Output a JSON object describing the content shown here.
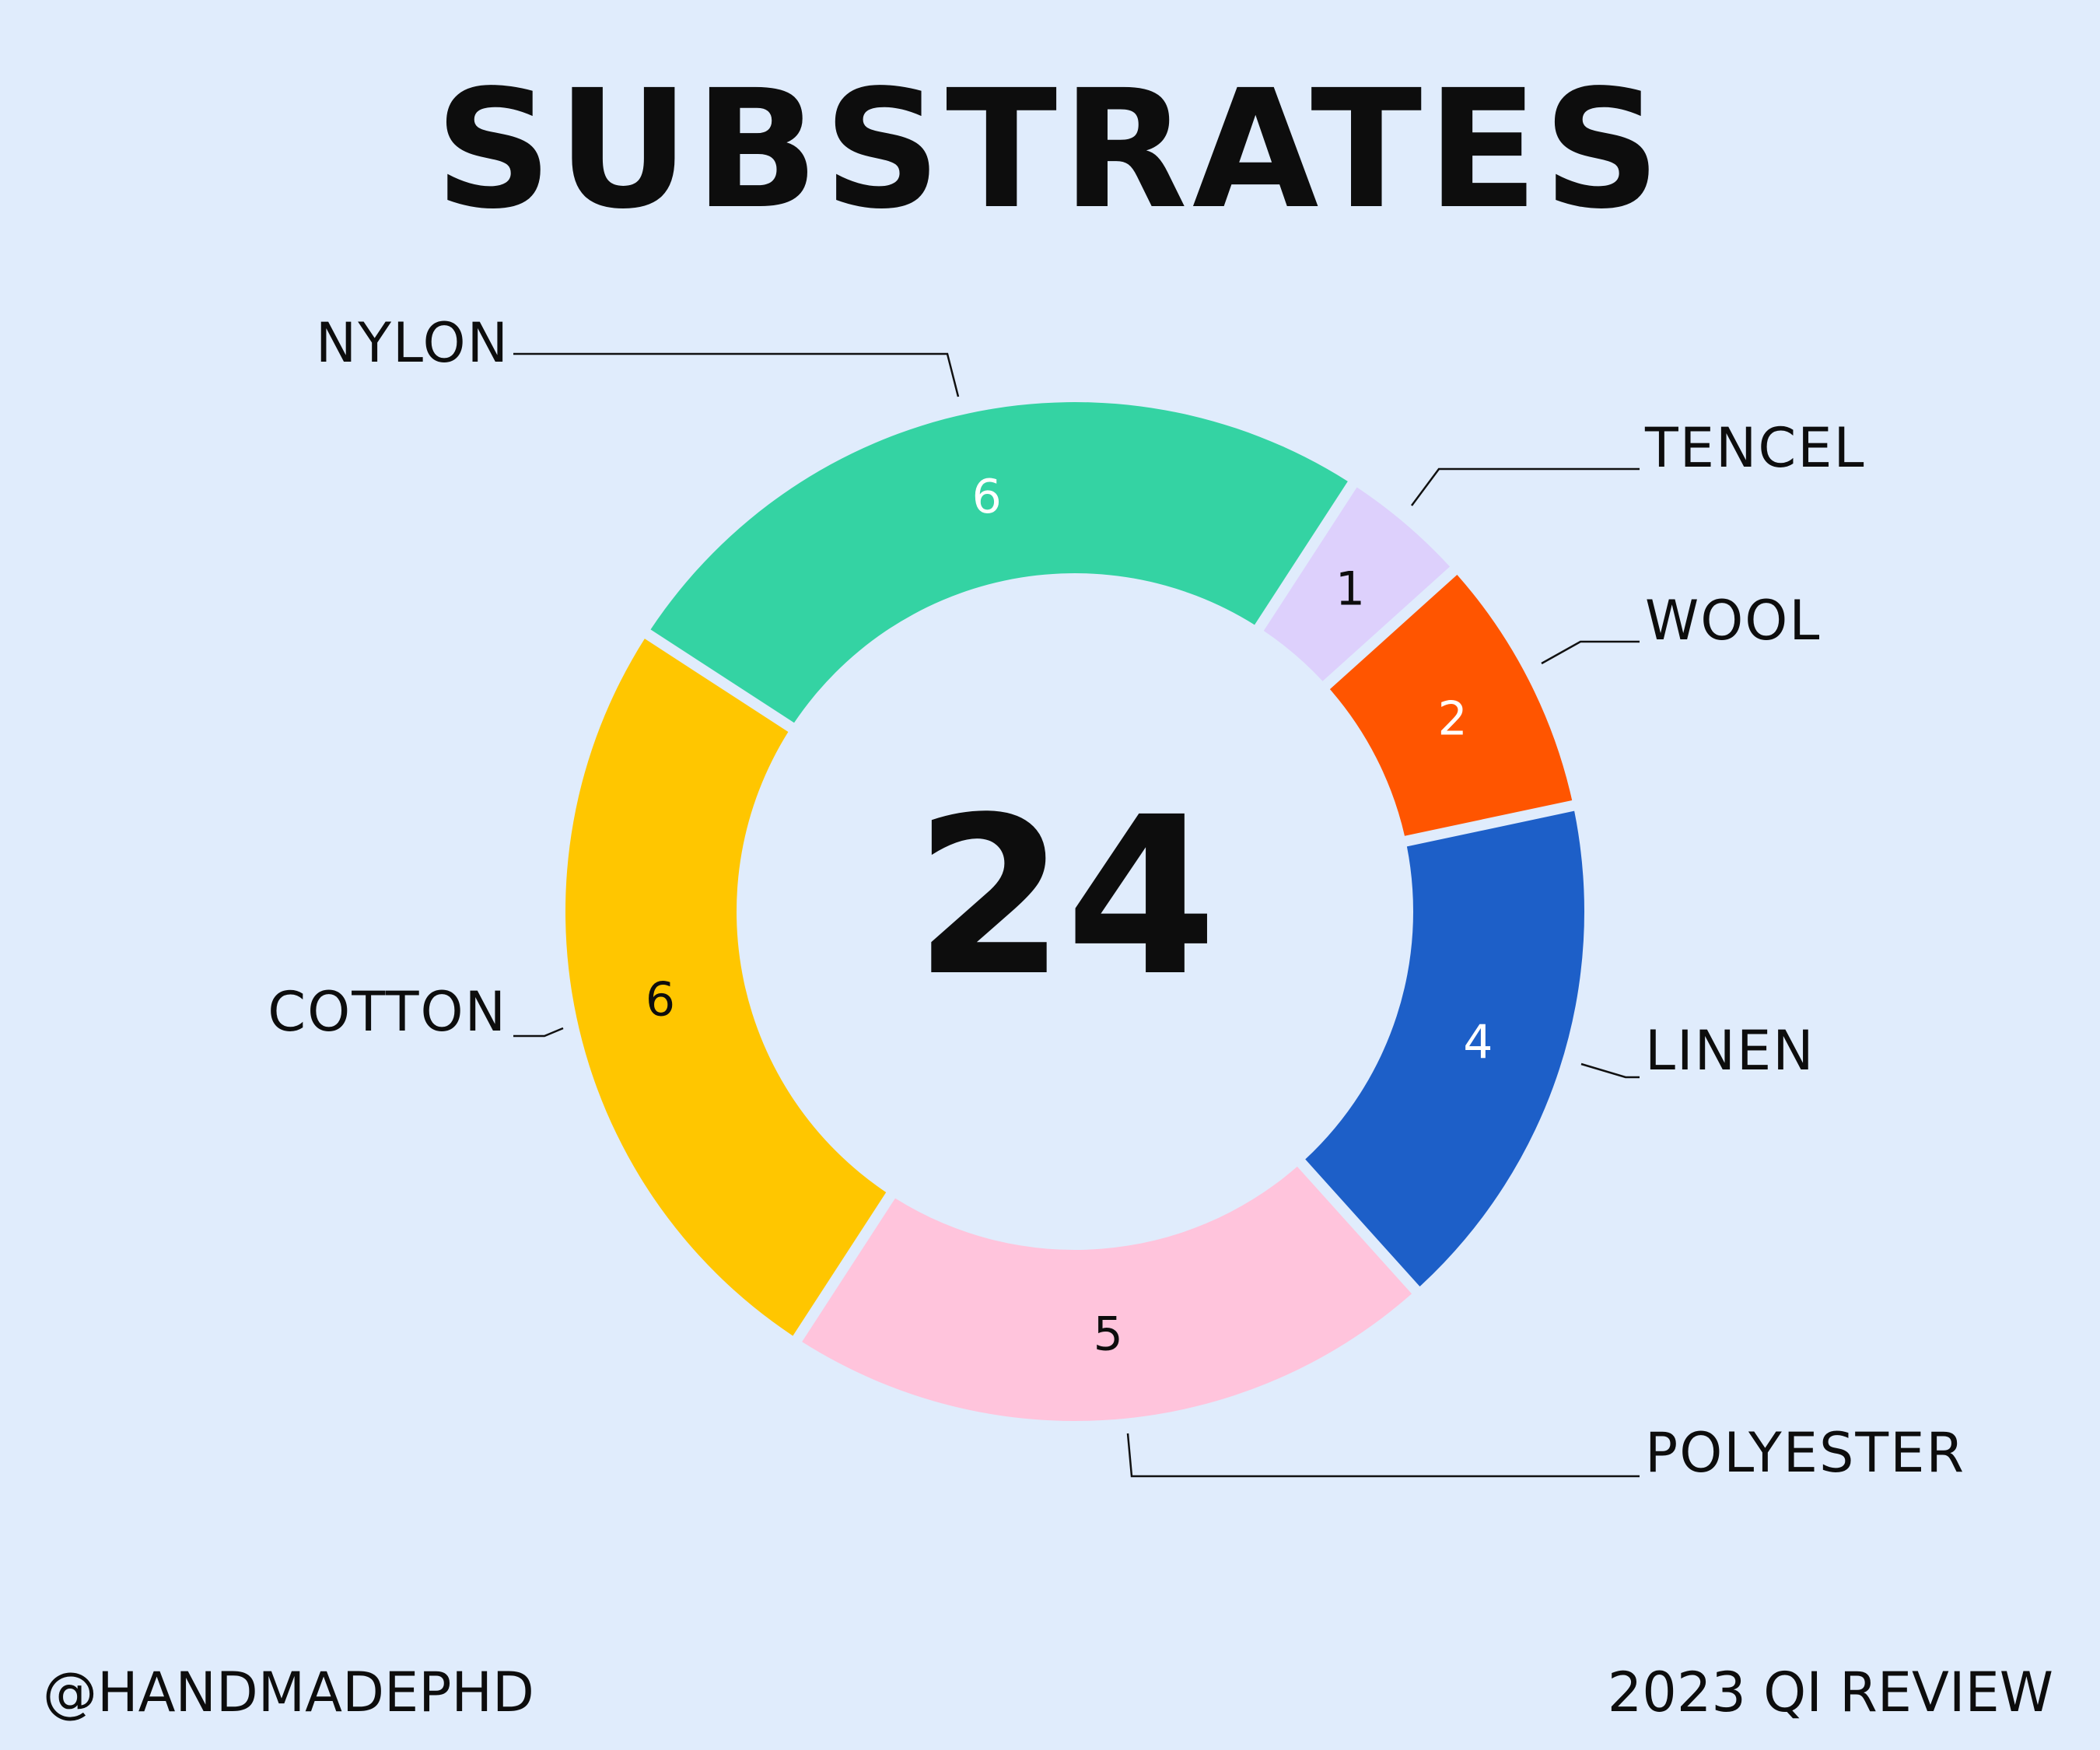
{
  "chart_data": {
    "type": "pie",
    "variant": "donut",
    "title": "SUBSTRATES",
    "center_label": "24",
    "categories": [
      "NYLON",
      "TENCEL",
      "WOOL",
      "LINEN",
      "POLYESTER",
      "COTTON"
    ],
    "values": [
      6,
      1,
      2,
      4,
      5,
      6
    ],
    "colors": [
      "#34d3a3",
      "#ddd0fc",
      "#ff5500",
      "#1d5fc8",
      "#ffc4dc",
      "#ffc600"
    ],
    "value_label_colors": [
      "#ffffff",
      "#0d0d0d",
      "#ffffff",
      "#ffffff",
      "#0d0d0d",
      "#0d0d0d"
    ],
    "legend": "callout labels"
  },
  "footer": {
    "left": "@HANDMADEPHD",
    "right": "2023 QI REVIEW"
  },
  "colors": {
    "background": "#e0ecfc",
    "text": "#0d0d0d"
  }
}
